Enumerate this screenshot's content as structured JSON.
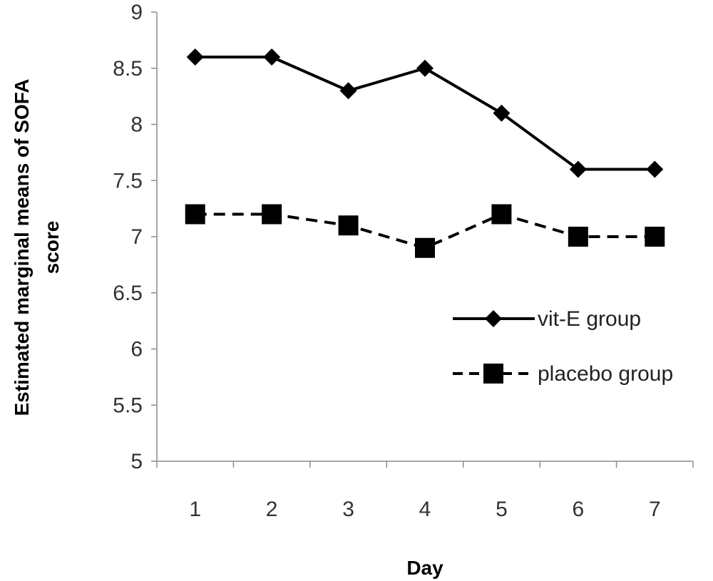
{
  "chart_data": {
    "type": "line",
    "title": "",
    "xlabel": "Day",
    "ylabel_line1": "Estimated marginal means of SOFA",
    "ylabel_line2": "score",
    "categories": [
      "1",
      "2",
      "3",
      "4",
      "5",
      "6",
      "7"
    ],
    "ylim": [
      5,
      9
    ],
    "yticks": [
      "5",
      "5.5",
      "6",
      "6.5",
      "7",
      "7.5",
      "8",
      "8.5",
      "9"
    ],
    "grid": false,
    "legend_position": "right",
    "series": [
      {
        "name": "vit-E group",
        "values": [
          8.6,
          8.6,
          8.3,
          8.5,
          8.1,
          7.6,
          7.6
        ],
        "marker": "diamond",
        "line_style": "solid",
        "color": "#000000"
      },
      {
        "name": "placebo group",
        "values": [
          7.2,
          7.2,
          7.1,
          6.9,
          7.2,
          7.0,
          7.0
        ],
        "marker": "square",
        "line_style": "dashed",
        "color": "#000000"
      }
    ]
  }
}
